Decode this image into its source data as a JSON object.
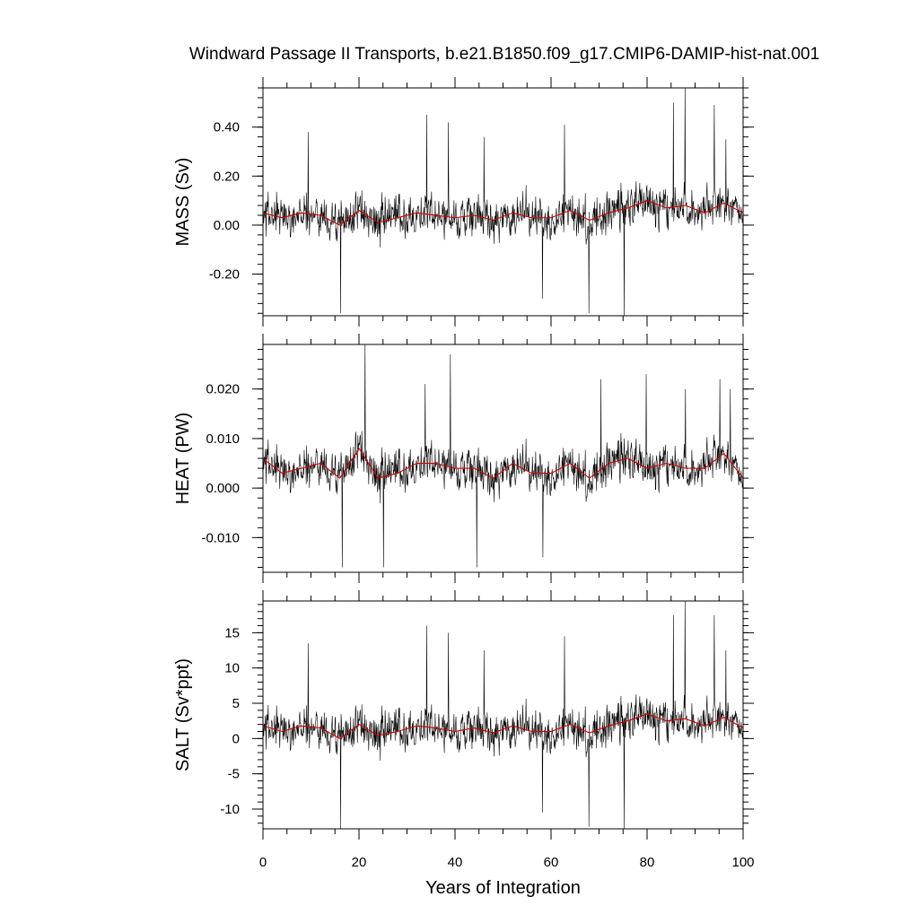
{
  "title": "Windward Passage II Transports, b.e21.B1850.f09_g17.CMIP6-DAMIP-hist-nat.001",
  "colors": {
    "raw": "#000000",
    "smooth": "#d00000",
    "frame": "#000000"
  },
  "chart_data": [
    {
      "type": "line",
      "panel": "mass",
      "ylabel": "MASS (Sv)",
      "xlim": [
        0,
        100
      ],
      "ylim": [
        -0.37,
        0.56
      ],
      "yticks": [
        -0.2,
        0.0,
        0.2,
        0.4
      ],
      "yticklabels": [
        "-0.20",
        "0.00",
        "0.20",
        "0.40"
      ],
      "series": [
        {
          "style": "raw",
          "mean": 0.04,
          "amp": 0.11,
          "spikes": [
            [
              9.4,
              0.38
            ],
            [
              16.2,
              -0.36
            ],
            [
              34.1,
              0.45
            ],
            [
              38.6,
              0.42
            ],
            [
              46.0,
              0.36
            ],
            [
              58.2,
              -0.3
            ],
            [
              62.8,
              0.41
            ],
            [
              67.9,
              -0.36
            ],
            [
              75.2,
              -0.38
            ],
            [
              85.5,
              0.5
            ],
            [
              87.9,
              0.56
            ],
            [
              94.0,
              0.49
            ],
            [
              96.4,
              0.35
            ]
          ]
        },
        {
          "style": "smooth",
          "x": [
            0,
            4,
            8,
            12,
            16,
            20,
            24,
            28,
            32,
            36,
            40,
            44,
            48,
            52,
            56,
            60,
            64,
            68,
            72,
            76,
            80,
            84,
            88,
            92,
            96,
            100
          ],
          "y": [
            0.05,
            0.03,
            0.05,
            0.04,
            0.0,
            0.06,
            0.01,
            0.03,
            0.05,
            0.04,
            0.03,
            0.04,
            0.02,
            0.05,
            0.03,
            0.03,
            0.06,
            0.02,
            0.05,
            0.07,
            0.1,
            0.07,
            0.08,
            0.05,
            0.09,
            0.05
          ]
        }
      ]
    },
    {
      "type": "line",
      "panel": "heat",
      "ylabel": "HEAT (PW)",
      "xlim": [
        0,
        100
      ],
      "ylim": [
        -0.017,
        0.029
      ],
      "yticks": [
        -0.01,
        0.0,
        0.01,
        0.02
      ],
      "yticklabels": [
        "-0.010",
        "0.000",
        "0.010",
        "0.020"
      ],
      "series": [
        {
          "style": "raw",
          "mean": 0.0035,
          "amp": 0.0055,
          "spikes": [
            [
              16.5,
              -0.016
            ],
            [
              21.3,
              0.029
            ],
            [
              25.1,
              -0.016
            ],
            [
              33.8,
              0.021
            ],
            [
              39.0,
              0.027
            ],
            [
              44.5,
              -0.016
            ],
            [
              58.3,
              -0.014
            ],
            [
              70.4,
              0.022
            ],
            [
              79.8,
              0.023
            ],
            [
              88.0,
              0.02
            ],
            [
              95.2,
              0.022
            ],
            [
              97.3,
              0.02
            ]
          ]
        },
        {
          "style": "smooth",
          "x": [
            0,
            4,
            8,
            12,
            16,
            20,
            24,
            28,
            32,
            36,
            40,
            44,
            48,
            52,
            56,
            60,
            64,
            68,
            72,
            76,
            80,
            84,
            88,
            92,
            96,
            100
          ],
          "y": [
            0.006,
            0.003,
            0.004,
            0.005,
            0.002,
            0.008,
            0.002,
            0.003,
            0.005,
            0.005,
            0.004,
            0.004,
            0.002,
            0.005,
            0.003,
            0.003,
            0.005,
            0.002,
            0.005,
            0.006,
            0.004,
            0.005,
            0.004,
            0.004,
            0.007,
            0.002
          ]
        }
      ]
    },
    {
      "type": "line",
      "panel": "salt",
      "ylabel": "SALT (Sv*ppt)",
      "xlabel": "Years of Integration",
      "xlim": [
        0,
        100
      ],
      "xticks": [
        0,
        20,
        40,
        60,
        80,
        100
      ],
      "ylim": [
        -12.8,
        19.5
      ],
      "yticks": [
        -10,
        -5,
        0,
        5,
        10,
        15
      ],
      "yticklabels": [
        "-10",
        "-5",
        "0",
        "5",
        "10",
        "15"
      ],
      "series": [
        {
          "style": "raw",
          "mean": 1.4,
          "amp": 3.8,
          "spikes": [
            [
              9.4,
              13.5
            ],
            [
              16.2,
              -12.8
            ],
            [
              34.1,
              16.0
            ],
            [
              38.6,
              15.0
            ],
            [
              46.0,
              12.5
            ],
            [
              58.2,
              -10.5
            ],
            [
              62.8,
              14.5
            ],
            [
              67.9,
              -12.5
            ],
            [
              75.2,
              -12.8
            ],
            [
              85.5,
              17.5
            ],
            [
              87.9,
              19.5
            ],
            [
              94.0,
              17.5
            ],
            [
              96.4,
              12.5
            ]
          ]
        },
        {
          "style": "smooth",
          "x": [
            0,
            4,
            8,
            12,
            16,
            20,
            24,
            28,
            32,
            36,
            40,
            44,
            48,
            52,
            56,
            60,
            64,
            68,
            72,
            76,
            80,
            84,
            88,
            92,
            96,
            100
          ],
          "y": [
            1.8,
            1.0,
            1.8,
            1.5,
            0.0,
            2.0,
            0.4,
            1.0,
            1.8,
            1.5,
            1.0,
            1.5,
            0.8,
            1.8,
            1.0,
            1.0,
            2.0,
            0.8,
            1.8,
            2.5,
            3.5,
            2.5,
            2.8,
            1.8,
            3.0,
            1.5
          ]
        }
      ]
    }
  ]
}
